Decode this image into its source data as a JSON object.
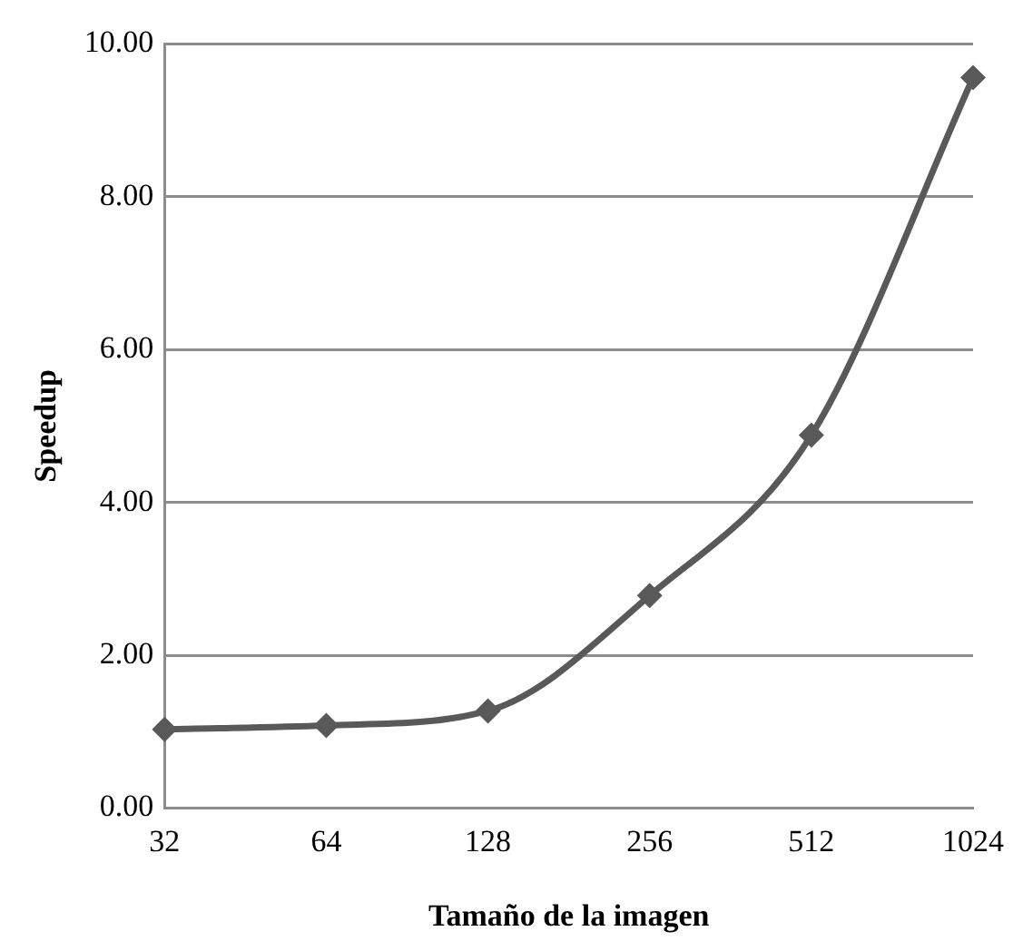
{
  "chart_data": {
    "type": "line",
    "xlabel": "Tamaño de la imagen",
    "ylabel": "Speedup",
    "categories": [
      "32",
      "64",
      "128",
      "256",
      "512",
      "1024"
    ],
    "series": [
      {
        "color": "#595959",
        "values": [
          1.03,
          1.08,
          1.27,
          2.78,
          4.88,
          9.56
        ]
      }
    ],
    "ylim": [
      0,
      10
    ],
    "yticks": [
      {
        "value": 0,
        "label": "0.00"
      },
      {
        "value": 2,
        "label": "2.00"
      },
      {
        "value": 4,
        "label": "4.00"
      },
      {
        "value": 6,
        "label": "6.00"
      },
      {
        "value": 8,
        "label": "8.00"
      },
      {
        "value": 10,
        "label": "10.00"
      }
    ],
    "grid": "y",
    "legend": false,
    "marker": "diamond",
    "line_style": "solid"
  }
}
